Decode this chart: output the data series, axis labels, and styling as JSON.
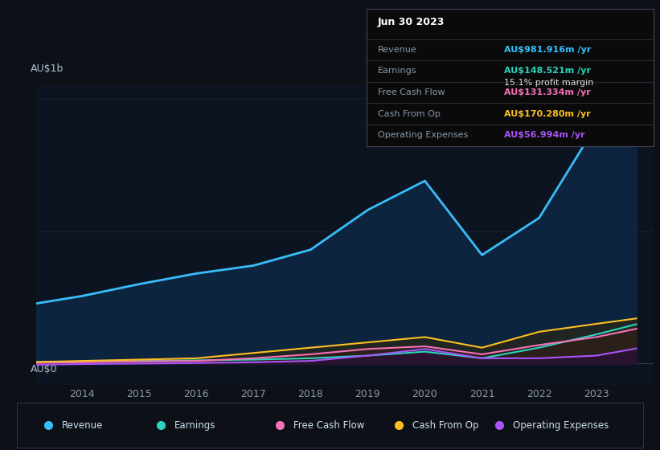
{
  "background_color": "#0d1117",
  "chart_bg": "#0d1421",
  "years": [
    2013,
    2014,
    2015,
    2016,
    2017,
    2018,
    2019,
    2020,
    2021,
    2022,
    2023,
    2023.7
  ],
  "revenue": [
    220,
    255,
    300,
    340,
    370,
    430,
    580,
    690,
    410,
    550,
    900,
    982
  ],
  "earnings": [
    5,
    8,
    10,
    12,
    15,
    20,
    30,
    45,
    20,
    60,
    110,
    148.5
  ],
  "free_cash_flow": [
    2,
    5,
    8,
    10,
    20,
    35,
    55,
    65,
    35,
    70,
    100,
    131.3
  ],
  "cash_from_op": [
    5,
    10,
    15,
    20,
    40,
    60,
    80,
    100,
    60,
    120,
    150,
    170.3
  ],
  "operating_expenses": [
    -5,
    -2,
    0,
    2,
    5,
    10,
    30,
    55,
    20,
    20,
    30,
    57
  ],
  "revenue_color": "#38bdf8",
  "earnings_color": "#2dd4bf",
  "fcf_color": "#f472b6",
  "cfop_color": "#fbbf24",
  "opex_color": "#a855f7",
  "ylabel": "AU$1b",
  "y0label": "AU$0",
  "xlim": [
    2013.2,
    2024.0
  ],
  "ylim": [
    -80,
    1050
  ],
  "x_ticks": [
    2014,
    2015,
    2016,
    2017,
    2018,
    2019,
    2020,
    2021,
    2022,
    2023
  ],
  "panel": {
    "title": "Jun 30 2023",
    "revenue_label": "Revenue",
    "revenue_value": "AU$981.916m /yr",
    "revenue_color": "#38bdf8",
    "earnings_label": "Earnings",
    "earnings_value": "AU$148.521m /yr",
    "earnings_color": "#2dd4bf",
    "margin_text": "15.1% profit margin",
    "fcf_label": "Free Cash Flow",
    "fcf_value": "AU$131.334m /yr",
    "fcf_color": "#f472b6",
    "cfop_label": "Cash From Op",
    "cfop_value": "AU$170.280m /yr",
    "cfop_color": "#fbbf24",
    "opex_label": "Operating Expenses",
    "opex_value": "AU$56.994m /yr",
    "opex_color": "#a855f7"
  },
  "legend": [
    {
      "label": "Revenue",
      "color": "#38bdf8"
    },
    {
      "label": "Earnings",
      "color": "#2dd4bf"
    },
    {
      "label": "Free Cash Flow",
      "color": "#f472b6"
    },
    {
      "label": "Cash From Op",
      "color": "#fbbf24"
    },
    {
      "label": "Operating Expenses",
      "color": "#a855f7"
    }
  ]
}
